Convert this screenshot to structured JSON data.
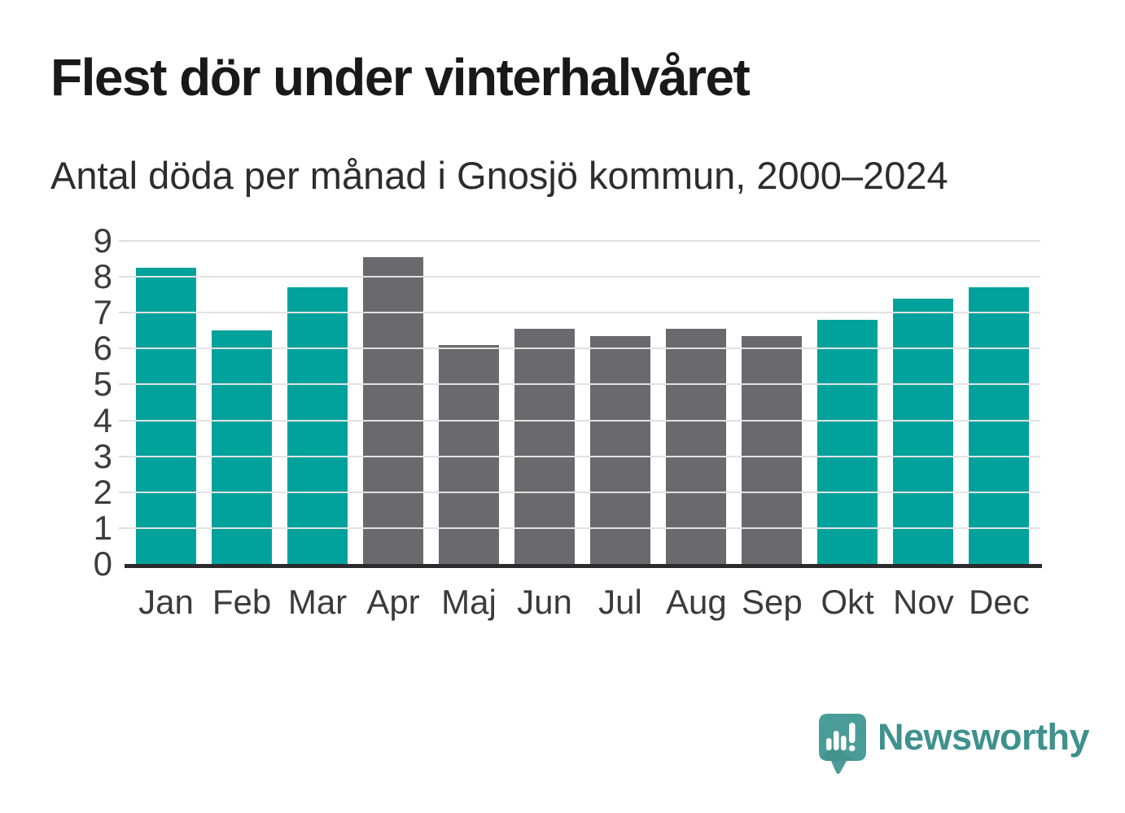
{
  "header": {
    "title": "Flest dör under vinterhalvåret",
    "subtitle": "Antal döda per månad i Gnosjö kommun, 2000–2024"
  },
  "chart_data": {
    "type": "bar",
    "title": "Flest dör under vinterhalvåret",
    "subtitle": "Antal döda per månad i Gnosjö kommun, 2000–2024",
    "categories": [
      "Jan",
      "Feb",
      "Mar",
      "Apr",
      "Maj",
      "Jun",
      "Jul",
      "Aug",
      "Sep",
      "Okt",
      "Nov",
      "Dec"
    ],
    "values": [
      8.25,
      6.5,
      7.7,
      8.55,
      6.1,
      6.55,
      6.35,
      6.55,
      6.35,
      6.8,
      7.4,
      7.7
    ],
    "bar_colors": [
      "teal",
      "teal",
      "teal",
      "gray",
      "gray",
      "gray",
      "gray",
      "gray",
      "gray",
      "teal",
      "teal",
      "teal"
    ],
    "palette": {
      "teal": "#00A29B",
      "gray": "#6A6A6E"
    },
    "xlabel": "",
    "ylabel": "",
    "ylim": [
      0,
      9
    ],
    "yticks": [
      0,
      1,
      2,
      3,
      4,
      5,
      6,
      7,
      8,
      9
    ],
    "grid": true,
    "legend": false,
    "gridline_color": "#e2e2e2",
    "axis_line_color": "#2b2b2d"
  },
  "footer": {
    "brand": "Newsworthy",
    "brand_color": "#3e918d",
    "logo_icon": "newsworthy-speech-bubble-bar-chart-icon"
  }
}
